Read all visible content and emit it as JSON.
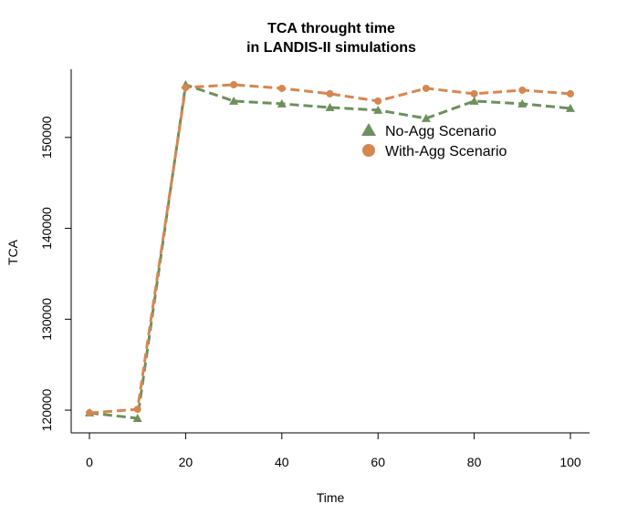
{
  "chart_data": {
    "type": "line",
    "title_lines": [
      "TCA throught time",
      "in LANDIS-II simulations"
    ],
    "xlabel": "Time",
    "ylabel": "TCA",
    "x": [
      0,
      10,
      20,
      30,
      40,
      50,
      60,
      70,
      80,
      90,
      100
    ],
    "xlim": [
      0,
      100
    ],
    "ylim": [
      117500,
      157500
    ],
    "x_ticks": [
      0,
      20,
      40,
      60,
      80,
      100
    ],
    "y_ticks": [
      120000,
      130000,
      140000,
      150000
    ],
    "grid": false,
    "legend_position": "top-right",
    "series": [
      {
        "name": "No-Agg Scenario",
        "marker": "triangle",
        "color": "#6e8f5e",
        "values": [
          119700,
          119100,
          155800,
          154000,
          153700,
          153300,
          153000,
          152100,
          154000,
          153700,
          153200
        ]
      },
      {
        "name": "With-Agg Scenario",
        "marker": "circle",
        "color": "#d6874f",
        "values": [
          119700,
          120100,
          155500,
          155800,
          155400,
          154800,
          154000,
          155400,
          154800,
          155200,
          154800
        ]
      }
    ]
  }
}
